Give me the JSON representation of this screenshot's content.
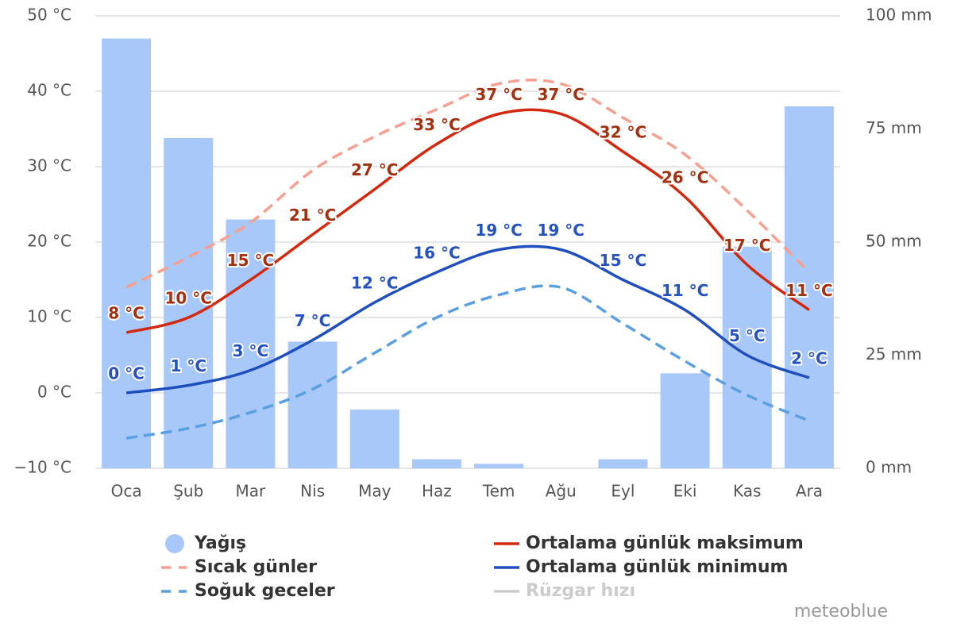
{
  "chart_data": {
    "type": "combo",
    "categories": [
      "Oca",
      "Şub",
      "Mar",
      "Nis",
      "May",
      "Haz",
      "Tem",
      "Ağu",
      "Eyl",
      "Eki",
      "Kas",
      "Ara"
    ],
    "ylim": [
      -10,
      50
    ],
    "yticks": [
      {
        "value": -10,
        "label": "−10 °C"
      },
      {
        "value": 0,
        "label": "0 °C"
      },
      {
        "value": 10,
        "label": "10 °C"
      },
      {
        "value": 20,
        "label": "20 °C"
      },
      {
        "value": 30,
        "label": "30 °C"
      },
      {
        "value": 40,
        "label": "40 °C"
      },
      {
        "value": 50,
        "label": "50 °C"
      }
    ],
    "y2lim": [
      0,
      100
    ],
    "y2ticks": [
      {
        "value": 0,
        "label": "0 mm"
      },
      {
        "value": 25,
        "label": "25 mm"
      },
      {
        "value": 50,
        "label": "50 mm"
      },
      {
        "value": 75,
        "label": "75 mm"
      },
      {
        "value": 100,
        "label": "100 mm"
      }
    ],
    "grid": true,
    "series": [
      {
        "name": "Yağış",
        "type": "bar",
        "axis": "y2",
        "color": "#a9c8fa",
        "values": [
          95,
          73,
          55,
          28,
          13,
          2,
          1,
          0,
          2,
          21,
          49,
          80
        ]
      },
      {
        "name": "Sıcak günler",
        "type": "line",
        "dash": true,
        "color": "#f5a090",
        "values": [
          14,
          18,
          22.6,
          29.5,
          34,
          37.6,
          41,
          41,
          36.5,
          31.6,
          24.2,
          16
        ]
      },
      {
        "name": "Soğuk geceler",
        "type": "line",
        "dash": true,
        "color": "#5a9fe0",
        "values": [
          -6,
          -4.7,
          -2.6,
          0.5,
          5.3,
          10,
          13,
          14,
          9.2,
          4.2,
          -0.3,
          -3.7
        ]
      },
      {
        "name": "Ortalama günlük maksimum",
        "type": "line",
        "color": "#d2280e",
        "label_color": "#a33010",
        "values": [
          8,
          10,
          15,
          21,
          27,
          33,
          37,
          37,
          32,
          26,
          17,
          11
        ],
        "value_labels": [
          "8 °C",
          "10 °C",
          "15 °C",
          "21 °C",
          "27 °C",
          "33 °C",
          "37 °C",
          "37 °C",
          "32 °C",
          "26 °C",
          "17 °C",
          "11 °C"
        ]
      },
      {
        "name": "Ortalama günlük minimum",
        "type": "line",
        "color": "#1f4fbf",
        "label_color": "#2552c0",
        "values": [
          0,
          1,
          3,
          7,
          12,
          16,
          19,
          19,
          15,
          11,
          5,
          2
        ],
        "value_labels": [
          "0 °C",
          "1 °C",
          "3 °C",
          "7 °C",
          "12 °C",
          "16 °C",
          "19 °C",
          "19 °C",
          "15 °C",
          "11 °C",
          "5 °C",
          "2 °C"
        ]
      }
    ],
    "inactive_legend": [
      "Rüzgar hızı"
    ],
    "watermark": "meteoblue"
  }
}
